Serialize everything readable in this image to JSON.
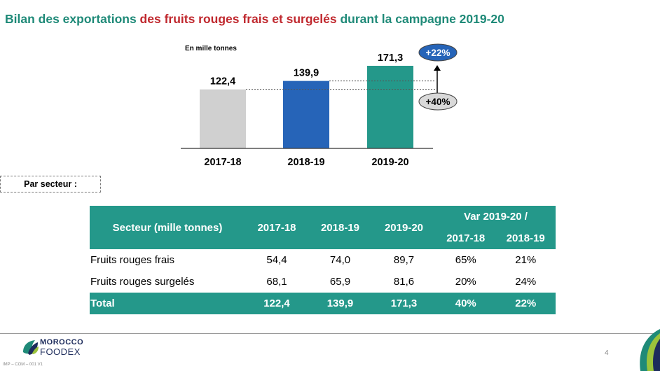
{
  "title": {
    "part1": "Bilan des exportations ",
    "part2": "des fruits rouges frais et surgelés",
    "part3": " durant la campagne 2019-20"
  },
  "chart_data": {
    "type": "bar",
    "unit_label": "En mille tonnes",
    "categories": [
      "2017-18",
      "2018-19",
      "2019-20"
    ],
    "values": [
      122.4,
      139.9,
      171.3
    ],
    "value_labels": [
      "122,4",
      "139,9",
      "171,3"
    ],
    "colors": [
      "#d0d0d0",
      "#2664b8",
      "#24988a"
    ],
    "annotations": [
      {
        "label": "+22%",
        "color": "#2664b8",
        "text_color": "#ffffff"
      },
      {
        "label": "+40%",
        "color": "#d9d9d9",
        "text_color": "#000000"
      }
    ]
  },
  "secteur_label": "Par secteur :",
  "table": {
    "header_sector": "Secteur (mille tonnes)",
    "header_years": [
      "2017-18",
      "2018-19",
      "2019-20"
    ],
    "header_var": "Var 2019-20 /",
    "header_var_sub": [
      "2017-18",
      "2018-19"
    ],
    "rows": [
      [
        "Fruits rouges frais",
        "54,4",
        "74,0",
        "89,7",
        "65%",
        "21%"
      ],
      [
        "Fruits rouges surgelés",
        "68,1",
        "65,9",
        "81,6",
        "20%",
        "24%"
      ]
    ],
    "total": [
      "Total",
      "122,4",
      "139,9",
      "171,3",
      "40%",
      "22%"
    ]
  },
  "footer": {
    "logo_line1": "MOROCCO",
    "logo_line2": "FOODEX",
    "page_number": "4",
    "code": "IMP – COM – 001 V1"
  }
}
